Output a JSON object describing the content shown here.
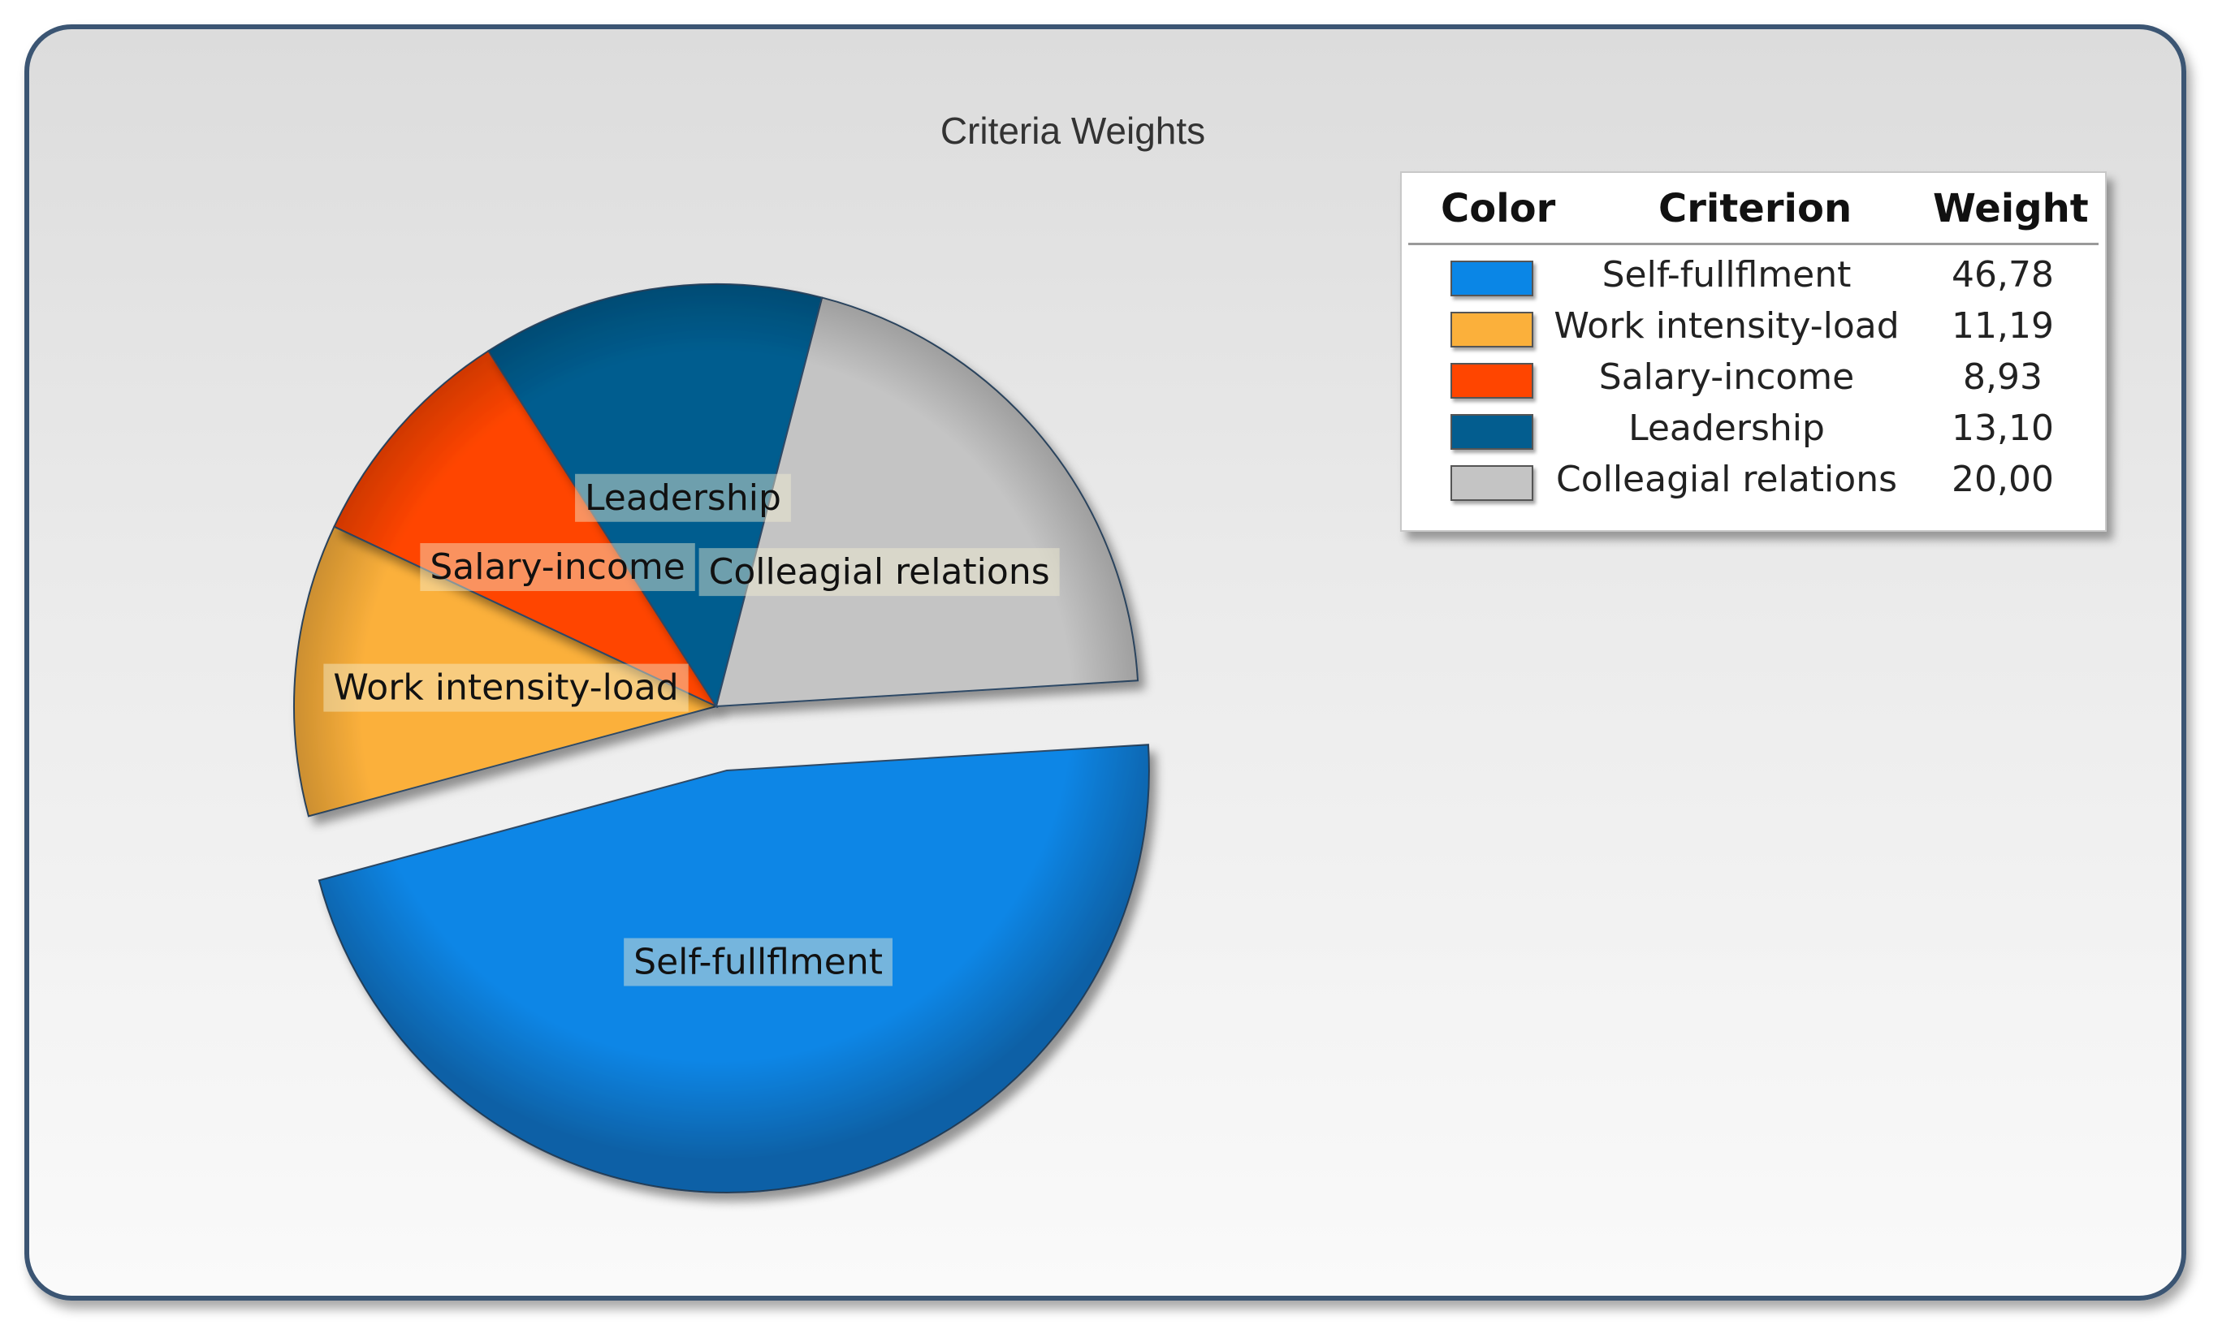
{
  "chart_data": {
    "type": "pie",
    "title": "Criteria Weights",
    "legend_position": "top-right",
    "exploded_slice": "Self-fullflment",
    "legend_headers": {
      "color": "Color",
      "criterion": "Criterion",
      "weight": "Weight"
    },
    "slices": [
      {
        "label": "Self-fullflment",
        "value": 46.78,
        "display_value": "46,78",
        "color": "#0a86e6"
      },
      {
        "label": "Work intensity-load",
        "value": 11.19,
        "display_value": "11,19",
        "color": "#fbb03b"
      },
      {
        "label": "Salary-income",
        "value": 8.93,
        "display_value": "8,93",
        "color": "#ff4500"
      },
      {
        "label": "Leadership",
        "value": 13.1,
        "display_value": "13,10",
        "color": "#035d8f"
      },
      {
        "label": "Colleagial relations",
        "value": 20.0,
        "display_value": "20,00",
        "color": "#c4c4c4"
      }
    ]
  }
}
